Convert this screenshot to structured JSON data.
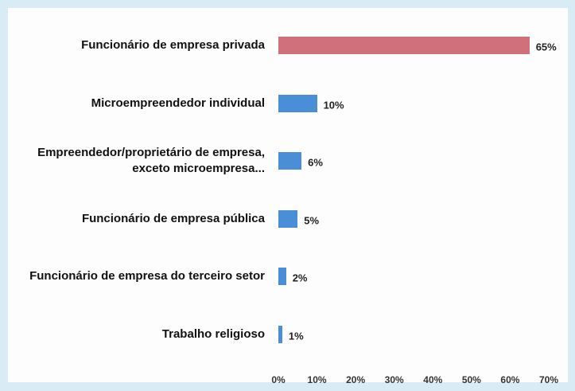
{
  "chart_data": {
    "type": "barh",
    "categories": [
      "Funcionário de empresa privada",
      "Microempreendedor individual",
      "Empreendedor/proprietário de empresa, exceto microempresa...",
      "Funcionário de empresa pública",
      "Funcionário de empresa do terceiro setor",
      "Trabalho religioso"
    ],
    "values": [
      65,
      10,
      6,
      5,
      2,
      1
    ],
    "value_labels": [
      "65%",
      "10%",
      "6%",
      "5%",
      "2%",
      "1%"
    ],
    "colors": [
      "#d0707a",
      "#4a8ed8",
      "#4a8ed8",
      "#4a8ed8",
      "#4a8ed8",
      "#4a8ed8"
    ],
    "xlim": [
      0,
      70
    ],
    "xticks": [
      {
        "value": 0,
        "label": "0%"
      },
      {
        "value": 10,
        "label": "10%"
      },
      {
        "value": 20,
        "label": "20%"
      },
      {
        "value": 30,
        "label": "30%"
      },
      {
        "value": 40,
        "label": "40%"
      },
      {
        "value": 50,
        "label": "50%"
      },
      {
        "value": 60,
        "label": "60%"
      },
      {
        "value": 70,
        "label": "70%"
      }
    ]
  }
}
